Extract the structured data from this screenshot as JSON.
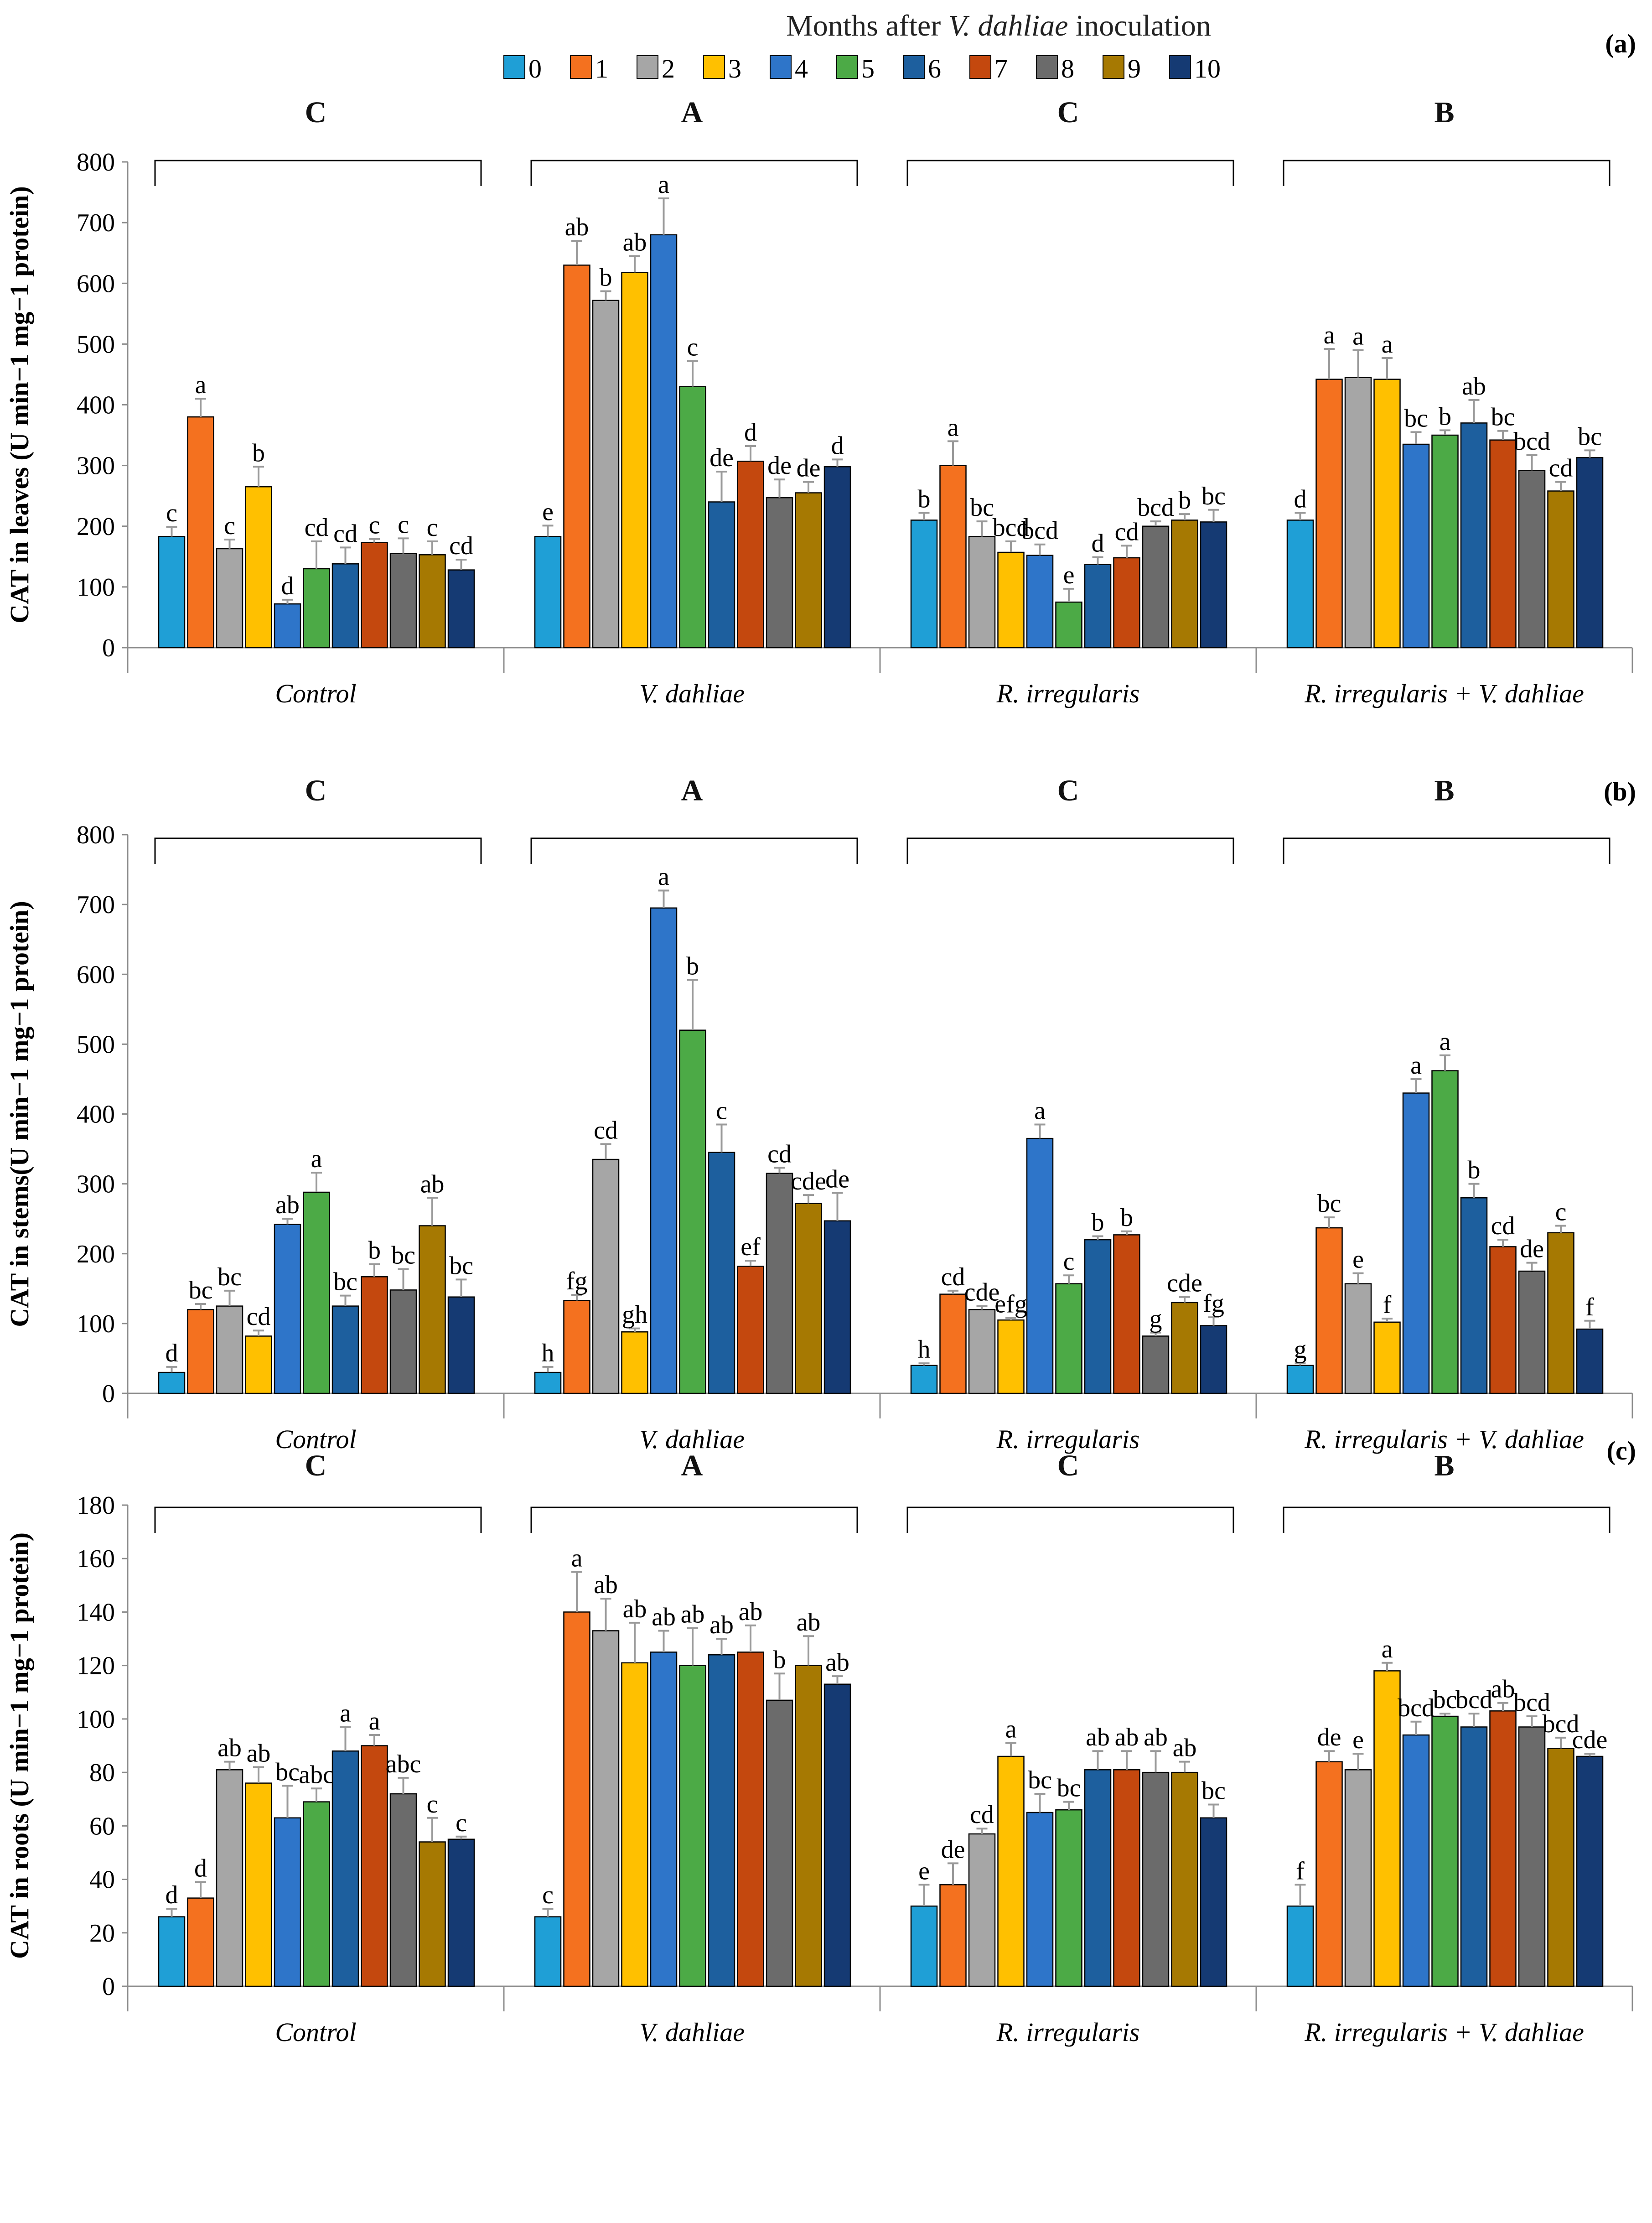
{
  "legend": {
    "title_prefix": "Months after ",
    "title_italic": "V. dahliae",
    "title_suffix": " inoculation",
    "months": [
      "0",
      "1",
      "2",
      "3",
      "4",
      "5",
      "6",
      "7",
      "8",
      "9",
      "10"
    ],
    "colors": [
      "#1f9fd6",
      "#f4711f",
      "#a6a6a6",
      "#ffc000",
      "#2e75c9",
      "#4caa46",
      "#1d5f9e",
      "#c4480e",
      "#6b6b6b",
      "#a67902",
      "#153a73"
    ]
  },
  "chart_data": [
    {
      "type": "bar",
      "panel": "(a)",
      "ylabel": "CAT in leaves (U min−1 mg−1 protein)",
      "ylim": [
        0,
        800
      ],
      "yticks": [
        0,
        100,
        200,
        300,
        400,
        500,
        600,
        700,
        800
      ],
      "categories": [
        "Control",
        "V. dahliae",
        "R. irregularis",
        "R. irregularis + V. dahliae"
      ],
      "group_letters": [
        "C",
        "A",
        "C",
        "B"
      ],
      "values": [
        [
          183,
          380,
          163,
          265,
          72,
          130,
          138,
          173,
          155,
          153,
          128
        ],
        [
          183,
          630,
          572,
          618,
          680,
          430,
          240,
          307,
          247,
          255,
          298
        ],
        [
          210,
          300,
          183,
          157,
          152,
          75,
          137,
          148,
          200,
          210,
          207
        ],
        [
          210,
          442,
          445,
          442,
          335,
          350,
          370,
          342,
          292,
          258,
          313
        ]
      ],
      "errors": [
        [
          16,
          30,
          15,
          33,
          7,
          45,
          27,
          6,
          25,
          22,
          17
        ],
        [
          18,
          40,
          15,
          27,
          60,
          42,
          50,
          25,
          30,
          18,
          12
        ],
        [
          12,
          40,
          25,
          18,
          18,
          22,
          12,
          20,
          8,
          10,
          20
        ],
        [
          12,
          50,
          45,
          35,
          20,
          8,
          38,
          15,
          25,
          15,
          12
        ]
      ],
      "letters": [
        [
          "c",
          "a",
          "c",
          "b",
          "d",
          "cd",
          "cd",
          "c",
          "c",
          "c",
          "cd"
        ],
        [
          "e",
          "ab",
          "b",
          "ab",
          "a",
          "c",
          "de",
          "d",
          "de",
          "de",
          "d"
        ],
        [
          "b",
          "a",
          "bc",
          "bcd",
          "bcd",
          "e",
          "d",
          "cd",
          "bcd",
          "b",
          "bc"
        ],
        [
          "d",
          "a",
          "a",
          "a",
          "bc",
          "b",
          "ab",
          "bc",
          "bcd",
          "cd",
          "bc"
        ]
      ]
    },
    {
      "type": "bar",
      "panel": "(b)",
      "ylabel": "CAT in stems(U min−1 mg−1 protein)",
      "ylim": [
        0,
        800
      ],
      "yticks": [
        0,
        100,
        200,
        300,
        400,
        500,
        600,
        700,
        800
      ],
      "categories": [
        "Control",
        "V. dahliae",
        "R. irregularis",
        "R. irregularis + V. dahliae"
      ],
      "group_letters": [
        "C",
        "A",
        "C",
        "B"
      ],
      "values": [
        [
          30,
          120,
          125,
          82,
          242,
          288,
          125,
          167,
          148,
          240,
          138
        ],
        [
          30,
          133,
          335,
          88,
          695,
          520,
          345,
          182,
          315,
          272,
          247
        ],
        [
          40,
          142,
          120,
          105,
          365,
          157,
          220,
          227,
          82,
          130,
          97
        ],
        [
          40,
          237,
          157,
          102,
          430,
          462,
          280,
          210,
          175,
          230,
          92
        ]
      ],
      "errors": [
        [
          8,
          8,
          22,
          8,
          8,
          28,
          15,
          18,
          30,
          40,
          25
        ],
        [
          8,
          8,
          22,
          5,
          25,
          72,
          40,
          8,
          8,
          12,
          40
        ],
        [
          3,
          5,
          5,
          3,
          20,
          12,
          5,
          5,
          5,
          8,
          12
        ],
        [
          3,
          15,
          15,
          5,
          20,
          22,
          20,
          10,
          12,
          10,
          12
        ]
      ],
      "letters": [
        [
          "d",
          "bc",
          "bc",
          "cd",
          "ab",
          "a",
          "bc",
          "b",
          "bc",
          "ab",
          "bc"
        ],
        [
          "h",
          "fg",
          "cd",
          "gh",
          "a",
          "b",
          "c",
          "ef",
          "cd",
          "cde",
          "de"
        ],
        [
          "h",
          "cd",
          "cde",
          "efg",
          "a",
          "c",
          "b",
          "b",
          "g",
          "cde",
          "fg"
        ],
        [
          "g",
          "bc",
          "e",
          "f",
          "a",
          "a",
          "b",
          "cd",
          "de",
          "c",
          "f"
        ]
      ]
    },
    {
      "type": "bar",
      "panel": "(c)",
      "ylabel": "CAT in roots (U min−1 mg−1 protein)",
      "ylim": [
        0,
        180
      ],
      "yticks": [
        0,
        20,
        40,
        60,
        80,
        100,
        120,
        140,
        160,
        180
      ],
      "categories": [
        "Control",
        "V. dahliae",
        "R. irregularis",
        "R. irregularis + V. dahliae"
      ],
      "group_letters": [
        "C",
        "A",
        "C",
        "B"
      ],
      "values": [
        [
          26,
          33,
          81,
          76,
          63,
          69,
          88,
          90,
          72,
          54,
          55
        ],
        [
          26,
          140,
          133,
          121,
          125,
          120,
          124,
          125,
          107,
          120,
          113
        ],
        [
          30,
          38,
          57,
          86,
          65,
          66,
          81,
          81,
          80,
          80,
          63
        ],
        [
          30,
          84,
          81,
          118,
          94,
          101,
          97,
          103,
          97,
          89,
          86
        ]
      ],
      "errors": [
        [
          3,
          6,
          3,
          6,
          12,
          5,
          9,
          4,
          6,
          9,
          1
        ],
        [
          3,
          15,
          12,
          15,
          8,
          14,
          6,
          10,
          10,
          11,
          3
        ],
        [
          8,
          8,
          2,
          5,
          7,
          3,
          7,
          7,
          8,
          4,
          5
        ],
        [
          8,
          4,
          6,
          3,
          5,
          1,
          5,
          3,
          4,
          4,
          1
        ]
      ],
      "letters": [
        [
          "d",
          "d",
          "ab",
          "ab",
          "bc",
          "abc",
          "a",
          "a",
          "abc",
          "c",
          "c"
        ],
        [
          "c",
          "a",
          "ab",
          "ab",
          "ab",
          "ab",
          "ab",
          "ab",
          "b",
          "ab",
          "ab"
        ],
        [
          "e",
          "de",
          "cd",
          "a",
          "bc",
          "bc",
          "ab",
          "ab",
          "ab",
          "ab",
          "bc"
        ],
        [
          "f",
          "de",
          "e",
          "a",
          "bcd",
          "bc",
          "bcd",
          "ab",
          "bcd",
          "bcd",
          "cde"
        ]
      ]
    }
  ]
}
